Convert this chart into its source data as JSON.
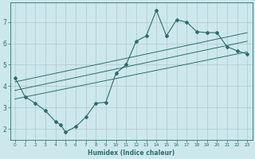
{
  "xlabel": "Humidex (Indice chaleur)",
  "background_color": "#cce8ec",
  "grid_color": "#b0c8cc",
  "line_color": "#2e6e6a",
  "xlim": [
    -0.5,
    23.5
  ],
  "ylim": [
    1.5,
    7.9
  ],
  "xticks": [
    0,
    1,
    2,
    3,
    4,
    5,
    6,
    7,
    8,
    9,
    10,
    11,
    12,
    13,
    14,
    15,
    16,
    17,
    18,
    19,
    20,
    21,
    22,
    23
  ],
  "yticks": [
    2,
    3,
    4,
    5,
    6,
    7
  ],
  "main_line_x": [
    0,
    1,
    2,
    3,
    4,
    4.5,
    5,
    6,
    7,
    8,
    9,
    10,
    11,
    12,
    13,
    14,
    15,
    16,
    17,
    18,
    19,
    20,
    21,
    22,
    23
  ],
  "main_line_y": [
    4.4,
    3.5,
    3.2,
    2.85,
    2.35,
    2.2,
    1.85,
    2.1,
    2.55,
    3.2,
    3.25,
    4.6,
    5.0,
    6.1,
    6.35,
    7.55,
    6.35,
    7.1,
    7.0,
    6.55,
    6.5,
    6.5,
    5.85,
    5.65,
    5.5
  ],
  "upper_line_x": [
    0,
    23
  ],
  "upper_line_y": [
    4.2,
    6.5
  ],
  "mid_line_x": [
    0,
    23
  ],
  "mid_line_y": [
    3.8,
    6.1
  ],
  "lower_line_x": [
    0,
    23
  ],
  "lower_line_y": [
    3.4,
    5.6
  ]
}
